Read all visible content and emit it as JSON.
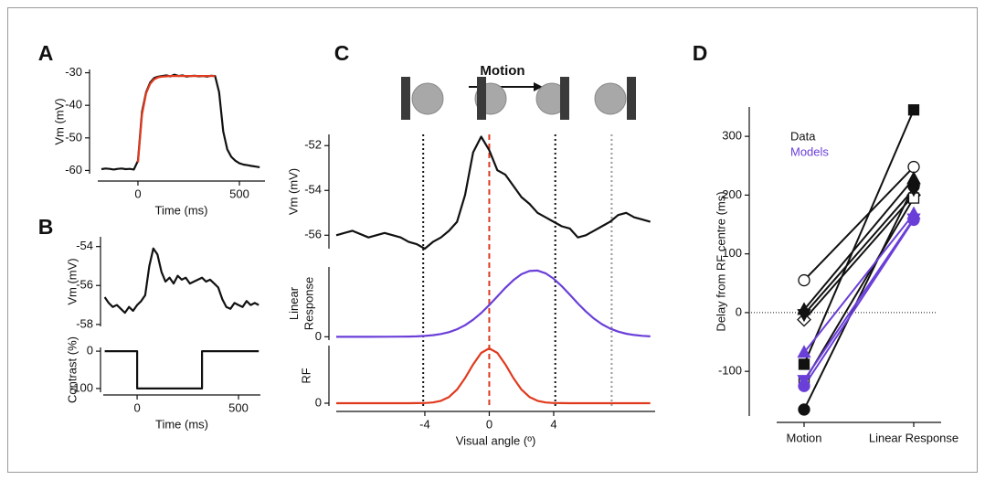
{
  "chart_data": [
    {
      "type": "line",
      "label": "A",
      "xlabel": "Time (ms)",
      "ylabel": "Vm (mV)",
      "x": [
        -180,
        -160,
        -140,
        -120,
        -100,
        -80,
        -60,
        -40,
        -20,
        0,
        20,
        40,
        60,
        80,
        100,
        120,
        140,
        160,
        180,
        200,
        220,
        240,
        260,
        280,
        300,
        320,
        340,
        360,
        380,
        400,
        420,
        440,
        460,
        480,
        500,
        520,
        540,
        560,
        580,
        600
      ],
      "xlim": [
        -198,
        626
      ],
      "ylim": [
        -61,
        -29
      ],
      "xticks": [
        0,
        500
      ],
      "yticks": [
        -30,
        -40,
        -50,
        -60
      ],
      "series": [
        {
          "color": "#111111",
          "values": [
            -59.6,
            -59.4,
            -59.5,
            -59.7,
            -59.5,
            -59.4,
            -59.6,
            -59.5,
            -59.7,
            -57,
            -42,
            -36,
            -33,
            -31.6,
            -31.2,
            -31,
            -30.8,
            -31.1,
            -30.6,
            -31,
            -30.8,
            -31.2,
            -31,
            -30.9,
            -31.1,
            -31,
            -31.2,
            -30.9,
            -31,
            -36,
            -48,
            -53.5,
            -55.8,
            -57,
            -57.8,
            -58.2,
            -58.4,
            -58.6,
            -58.8,
            -59
          ]
        },
        {
          "color": "#e03a1e",
          "values": [
            null,
            null,
            null,
            null,
            null,
            null,
            null,
            null,
            null,
            -57.5,
            -42.8,
            -36.3,
            -33.4,
            -32,
            -31.4,
            -31.2,
            -31.1,
            -31,
            -31,
            -31,
            -31,
            -31,
            -31,
            -31,
            -31,
            -31,
            -31,
            -31,
            -31,
            null,
            null,
            null,
            null,
            null,
            null,
            null,
            null,
            null,
            null,
            null
          ]
        }
      ]
    },
    {
      "type": "line",
      "label": "B",
      "ylabel": "Vm (mV)",
      "x": [
        -160,
        -140,
        -120,
        -100,
        -80,
        -60,
        -40,
        -20,
        0,
        20,
        40,
        60,
        80,
        100,
        120,
        140,
        160,
        180,
        200,
        220,
        240,
        260,
        280,
        300,
        320,
        340,
        360,
        380,
        400,
        420,
        440,
        460,
        480,
        500,
        520,
        540,
        560,
        580,
        600
      ],
      "xlim": [
        -167,
        608
      ],
      "ylim": [
        -58.1,
        -53.5
      ],
      "yticks": [
        -54,
        -56,
        -58
      ],
      "series": [
        {
          "color": "#111111",
          "values": [
            -56.6,
            -56.9,
            -57.1,
            -57,
            -57.2,
            -57.4,
            -57.1,
            -57.3,
            -57,
            -56.8,
            -56.5,
            -55,
            -54.1,
            -54.4,
            -55.3,
            -55.8,
            -55.6,
            -55.9,
            -55.5,
            -55.7,
            -55.6,
            -55.9,
            -55.8,
            -55.7,
            -55.6,
            -55.8,
            -55.7,
            -55.9,
            -56.1,
            -56.7,
            -57.1,
            -57.2,
            -56.9,
            -57,
            -57.1,
            -56.8,
            -57,
            -56.9,
            -57
          ]
        }
      ]
    },
    {
      "type": "line",
      "xlabel": "Time (ms)",
      "ylabel": "Contrast (%)",
      "x": [
        -160,
        0,
        0,
        320,
        320,
        600
      ],
      "xlim": [
        -167,
        608
      ],
      "ylim": [
        -110,
        10
      ],
      "xticks": [
        0,
        500
      ],
      "yticks": [
        0,
        -100
      ],
      "series": [
        {
          "color": "#111111",
          "values": [
            0,
            0,
            -100,
            -100,
            0,
            0
          ]
        }
      ]
    },
    {
      "type": "line",
      "label": "C",
      "annotation": "Motion",
      "ylabel": "Vm (mV)",
      "x": [
        -9.5,
        -8.5,
        -7.5,
        -6.5,
        -5.5,
        -5,
        -4.5,
        -4,
        -3.5,
        -3,
        -2.5,
        -2,
        -1.5,
        -1,
        -0.5,
        0,
        0.5,
        1,
        1.5,
        2,
        2.5,
        3,
        3.5,
        4,
        4.5,
        5,
        5.5,
        6,
        6.5,
        7,
        7.5,
        8,
        8.5,
        9,
        9.5,
        10
      ],
      "xlim": [
        -9.5,
        10.3
      ],
      "ylim": [
        -56.6,
        -51.5
      ],
      "yticks": [
        -52,
        -54,
        -56
      ],
      "reference_lines": [
        {
          "x": -4.1,
          "color": "#111111",
          "dash": "dotted"
        },
        {
          "x": 0,
          "color": "#e03a1e",
          "dash": "dashed"
        },
        {
          "x": 4.1,
          "color": "#111111",
          "dash": "dotted"
        },
        {
          "x": 7.6,
          "color": "#999999",
          "dash": "dotted"
        }
      ],
      "series": [
        {
          "color": "#111111",
          "values": [
            -56,
            -55.8,
            -56.1,
            -55.9,
            -56.1,
            -56.3,
            -56.4,
            -56.6,
            -56.3,
            -56.1,
            -55.8,
            -55.4,
            -54.2,
            -52.3,
            -51.6,
            -52.2,
            -53.1,
            -53.3,
            -53.8,
            -54.3,
            -54.6,
            -55,
            -55.2,
            -55.4,
            -55.6,
            -55.7,
            -56.1,
            -56,
            -55.8,
            -55.6,
            -55.4,
            -55.1,
            -55,
            -55.2,
            -55.3,
            -55.4
          ]
        }
      ]
    },
    {
      "type": "line",
      "ylabel": "Linear Response",
      "x": [
        -9.5,
        -8.5,
        -7.5,
        -6.5,
        -5.5,
        -5,
        -4.5,
        -4,
        -3.5,
        -3,
        -2.5,
        -2,
        -1.5,
        -1,
        -0.5,
        0,
        0.5,
        1,
        1.5,
        2,
        2.5,
        3,
        3.5,
        4,
        4.5,
        5,
        5.5,
        6,
        6.5,
        7,
        7.5,
        8,
        8.5,
        9,
        9.5,
        10
      ],
      "xlim": [
        -9.5,
        10.3
      ],
      "ylim": [
        -0.05,
        1.05
      ],
      "yticks": [
        0
      ],
      "series": [
        {
          "color": "#6a3fd8",
          "values": [
            0,
            0,
            0,
            0.001,
            0.002,
            0.003,
            0.006,
            0.013,
            0.024,
            0.042,
            0.07,
            0.113,
            0.174,
            0.256,
            0.357,
            0.477,
            0.607,
            0.736,
            0.852,
            0.941,
            0.99,
            0.996,
            0.955,
            0.873,
            0.761,
            0.633,
            0.502,
            0.38,
            0.274,
            0.189,
            0.124,
            0.078,
            0.046,
            0.027,
            0.014,
            0.007
          ]
        }
      ]
    },
    {
      "type": "line",
      "ylabel": "RF",
      "xlabel": "Visual angle (º)",
      "x": [
        -9.5,
        -8.5,
        -7.5,
        -6.5,
        -5.5,
        -5,
        -4.5,
        -4,
        -3.5,
        -3,
        -2.5,
        -2,
        -1.5,
        -1,
        -0.5,
        0,
        0.5,
        1,
        1.5,
        2,
        2.5,
        3,
        3.5,
        4,
        4.5,
        5,
        5.5,
        6,
        6.5,
        7,
        7.5,
        8,
        8.5,
        9,
        9.5,
        10
      ],
      "xlim": [
        -9.5,
        10.3
      ],
      "ylim": [
        -0.05,
        1.05
      ],
      "xticks": [
        -4,
        0,
        4
      ],
      "yticks": [
        0
      ],
      "series": [
        {
          "color": "#e03a1e",
          "values": [
            0,
            0,
            0,
            0,
            0,
            0,
            0.001,
            0.004,
            0.014,
            0.044,
            0.114,
            0.249,
            0.458,
            0.707,
            0.917,
            1,
            0.917,
            0.707,
            0.458,
            0.249,
            0.114,
            0.044,
            0.014,
            0.004,
            0.001,
            0,
            0,
            0,
            0,
            0,
            0,
            0,
            0,
            0,
            0,
            0
          ]
        }
      ]
    },
    {
      "type": "slope",
      "label": "D",
      "ylabel": "Delay from RF centre (ms)",
      "categories": [
        "Motion",
        "Linear Response"
      ],
      "ylim": [
        -176,
        350
      ],
      "yticks": [
        -100,
        0,
        100,
        200,
        300
      ],
      "zero_line": true,
      "series": [
        {
          "name": "Data",
          "color": "#111111",
          "pairs": [
            {
              "marker": "circle-open",
              "values": [
                55,
                248
              ]
            },
            {
              "marker": "triangle",
              "values": [
                5,
                228
              ]
            },
            {
              "marker": "diamond-open",
              "values": [
                -12,
                200
              ]
            },
            {
              "marker": "square",
              "values": [
                -88,
                345
              ]
            },
            {
              "marker": "circle",
              "values": [
                -165,
                215
              ]
            },
            {
              "marker": "square-open",
              "values": [
                -118,
                195
              ]
            },
            {
              "marker": "triangle-down",
              "values": [
                -3,
                210
              ]
            }
          ]
        },
        {
          "name": "Models",
          "color": "#6a3fd8",
          "pairs": [
            {
              "marker": "triangle",
              "values": [
                -68,
                168
              ]
            },
            {
              "marker": "triangle-down",
              "values": [
                -115,
                160
              ]
            },
            {
              "marker": "circle",
              "values": [
                -125,
                158
              ]
            }
          ]
        }
      ]
    }
  ]
}
